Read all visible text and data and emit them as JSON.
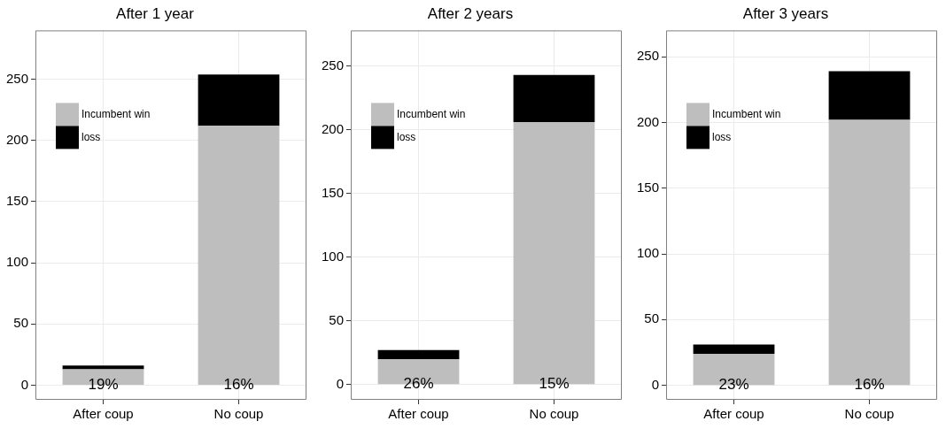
{
  "chart_data": [
    {
      "type": "bar",
      "title": "After 1 year",
      "categories": [
        "After coup",
        "No coup"
      ],
      "stacked": true,
      "series": [
        {
          "name": "Incumbent win",
          "color": "#bebebe",
          "values": [
            13,
            212
          ]
        },
        {
          "name": "loss",
          "color": "#000000",
          "values": [
            3,
            42
          ]
        }
      ],
      "ylim": [
        -12,
        290
      ],
      "yticks": [
        0,
        50,
        100,
        150,
        200,
        250
      ],
      "grid": true,
      "legend": "top left",
      "annotations": [
        {
          "text": "19%",
          "x": "After coup",
          "y": 0
        },
        {
          "text": "16%",
          "x": "No coup",
          "y": 0
        }
      ]
    },
    {
      "type": "bar",
      "title": "After 2 years",
      "categories": [
        "After coup",
        "No coup"
      ],
      "stacked": true,
      "series": [
        {
          "name": "Incumbent win",
          "color": "#bebebe",
          "values": [
            20,
            206
          ]
        },
        {
          "name": "loss",
          "color": "#000000",
          "values": [
            7,
            37
          ]
        }
      ],
      "ylim": [
        -12,
        278
      ],
      "yticks": [
        0,
        50,
        100,
        150,
        200,
        250
      ],
      "grid": true,
      "legend": "top left",
      "annotations": [
        {
          "text": "26%",
          "x": "After coup",
          "y": 0
        },
        {
          "text": "15%",
          "x": "No coup",
          "y": 0
        }
      ]
    },
    {
      "type": "bar",
      "title": "After 3 years",
      "categories": [
        "After coup",
        "No coup"
      ],
      "stacked": true,
      "series": [
        {
          "name": "Incumbent win",
          "color": "#bebebe",
          "values": [
            24,
            202
          ]
        },
        {
          "name": "loss",
          "color": "#000000",
          "values": [
            7,
            37
          ]
        }
      ],
      "ylim": [
        -11,
        270
      ],
      "yticks": [
        0,
        50,
        100,
        150,
        200,
        250
      ],
      "grid": true,
      "legend": "top left",
      "annotations": [
        {
          "text": "23%",
          "x": "After coup",
          "y": 0
        },
        {
          "text": "16%",
          "x": "No coup",
          "y": 0
        }
      ]
    }
  ]
}
